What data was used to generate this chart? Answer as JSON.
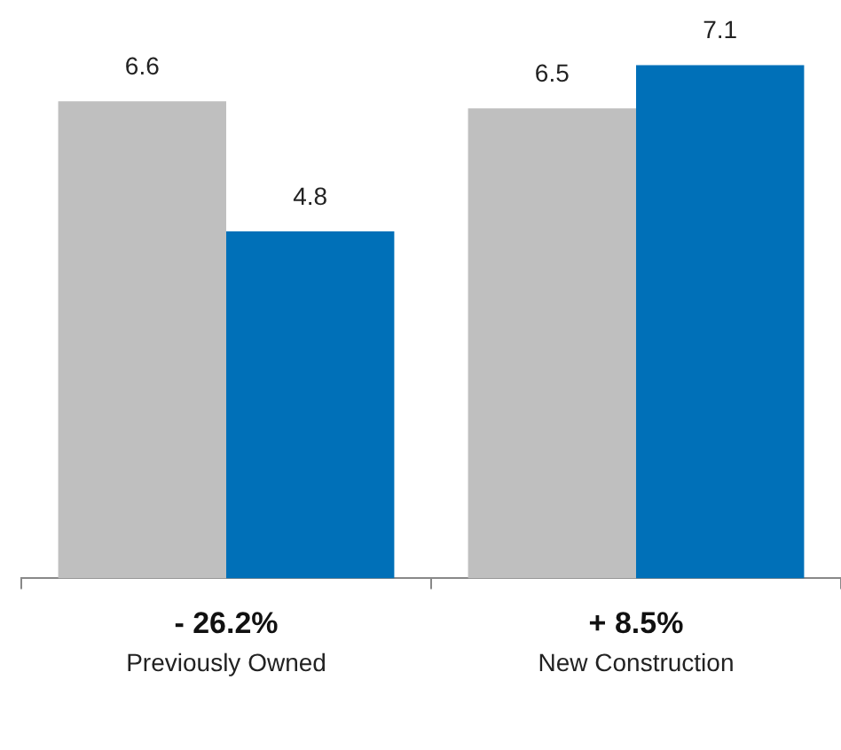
{
  "chart_data": {
    "type": "bar",
    "categories": [
      "Previously Owned",
      "New Construction"
    ],
    "series": [
      {
        "color": "#bfbfbf",
        "values": [
          6.6,
          6.5
        ]
      },
      {
        "color": "#0070b8",
        "values": [
          4.8,
          7.1
        ]
      }
    ],
    "data_labels": true,
    "grid": false,
    "legend": false,
    "annotations": [
      "- 26.2%",
      "+ 8.5%"
    ]
  }
}
